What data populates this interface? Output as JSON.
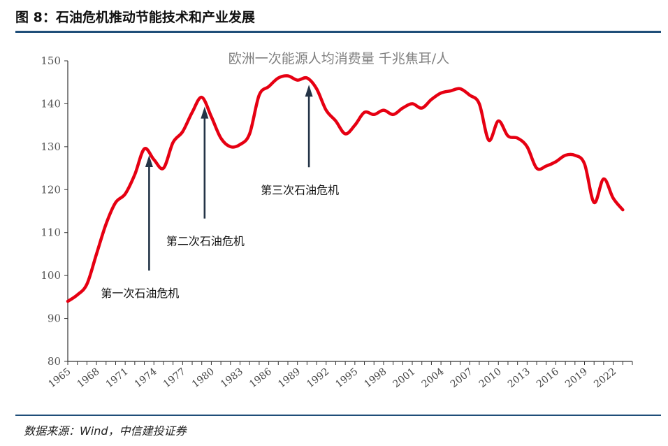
{
  "figure_title": "图 8：石油危机推动节能技术和产业发展",
  "source_note": "数据来源：Wind，中信建投证券",
  "colors": {
    "line": "#e60012",
    "arrow": "#243447",
    "rule": "#1f4e79",
    "axis": "#333333"
  },
  "chart_data": {
    "type": "line",
    "title": "欧洲一次能源人均消费量 千兆焦耳/人",
    "ylim": [
      80,
      150
    ],
    "yticks": [
      80,
      90,
      100,
      110,
      120,
      130,
      140,
      150
    ],
    "xlim": [
      1965,
      2024
    ],
    "xticks": [
      1965,
      1968,
      1971,
      1974,
      1977,
      1980,
      1983,
      1986,
      1989,
      1992,
      1995,
      1998,
      2001,
      2004,
      2007,
      2010,
      2013,
      2016,
      2019,
      2022
    ],
    "grid": false,
    "series": [
      {
        "x": [
          1965,
          1966,
          1967,
          1968,
          1969,
          1970,
          1971,
          1972,
          1973,
          1974,
          1975,
          1976,
          1977,
          1978,
          1979,
          1980,
          1981,
          1982,
          1983,
          1984,
          1985,
          1986,
          1987,
          1988,
          1989,
          1990,
          1991,
          1992,
          1993,
          1994,
          1995,
          1996,
          1997,
          1998,
          1999,
          2000,
          2001,
          2002,
          2003,
          2004,
          2005,
          2006,
          2007,
          2008,
          2009,
          2010,
          2011,
          2012,
          2013,
          2014,
          2015,
          2016,
          2017,
          2018,
          2019,
          2020,
          2021,
          2022,
          2023
        ],
        "y": [
          94,
          95.5,
          98,
          105,
          112,
          117,
          119,
          123.5,
          129.5,
          127,
          125,
          131,
          133.5,
          138,
          141.5,
          137,
          132,
          130,
          130.5,
          133,
          142,
          144,
          146,
          146.5,
          145.5,
          146,
          143.5,
          138.5,
          136,
          133,
          135,
          138,
          137.5,
          138.5,
          137.5,
          139,
          140,
          139,
          141,
          142.5,
          143,
          143.5,
          142,
          140,
          131.5,
          136,
          132.5,
          132,
          130,
          125,
          125.5,
          126.5,
          128,
          128,
          126,
          117,
          122.5,
          118,
          115.3
        ]
      }
    ],
    "annotations": [
      {
        "text": "第一次石油危机",
        "x": 1973.5,
        "y": 129
      },
      {
        "text": "第二次石油危机",
        "x": 1979.3,
        "y": 140.3
      },
      {
        "text": "第三次石油危机",
        "x": 1990.2,
        "y": 145.4
      }
    ]
  }
}
